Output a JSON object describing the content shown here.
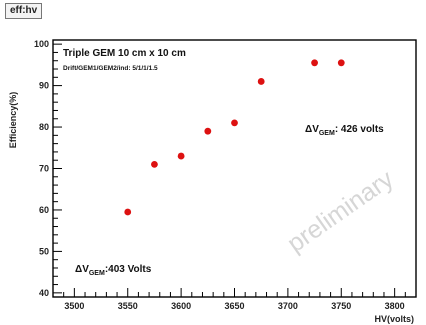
{
  "canvas_title": "eff:hv",
  "chart_data": {
    "type": "scatter",
    "title": "Triple GEM 10 cm x 10 cm",
    "subtitle": "Drift/GEM1/GEM2/ind: 5/1/1/1.5",
    "xlabel": "HV(volts)",
    "ylabel": "Efficiency(%)",
    "xlim": [
      3480,
      3820
    ],
    "ylim": [
      39,
      101
    ],
    "x_ticks": [
      3500,
      3550,
      3600,
      3650,
      3700,
      3750,
      3800
    ],
    "y_ticks": [
      40,
      50,
      60,
      70,
      80,
      90,
      100
    ],
    "grid": false,
    "marker_color": "#dd1111",
    "points": [
      {
        "x": 3550,
        "y": 59.5
      },
      {
        "x": 3575,
        "y": 71
      },
      {
        "x": 3600,
        "y": 73
      },
      {
        "x": 3625,
        "y": 79
      },
      {
        "x": 3650,
        "y": 81
      },
      {
        "x": 3675,
        "y": 91
      },
      {
        "x": 3725,
        "y": 95.5
      },
      {
        "x": 3750,
        "y": 95.5
      }
    ],
    "annotations": [
      {
        "prefix": "ΔV",
        "sub": "GEM",
        "suffix": ": 426 volts"
      },
      {
        "prefix": "ΔV",
        "sub": "GEM",
        "suffix": ":403 Volts"
      }
    ],
    "watermark": "preliminary"
  }
}
